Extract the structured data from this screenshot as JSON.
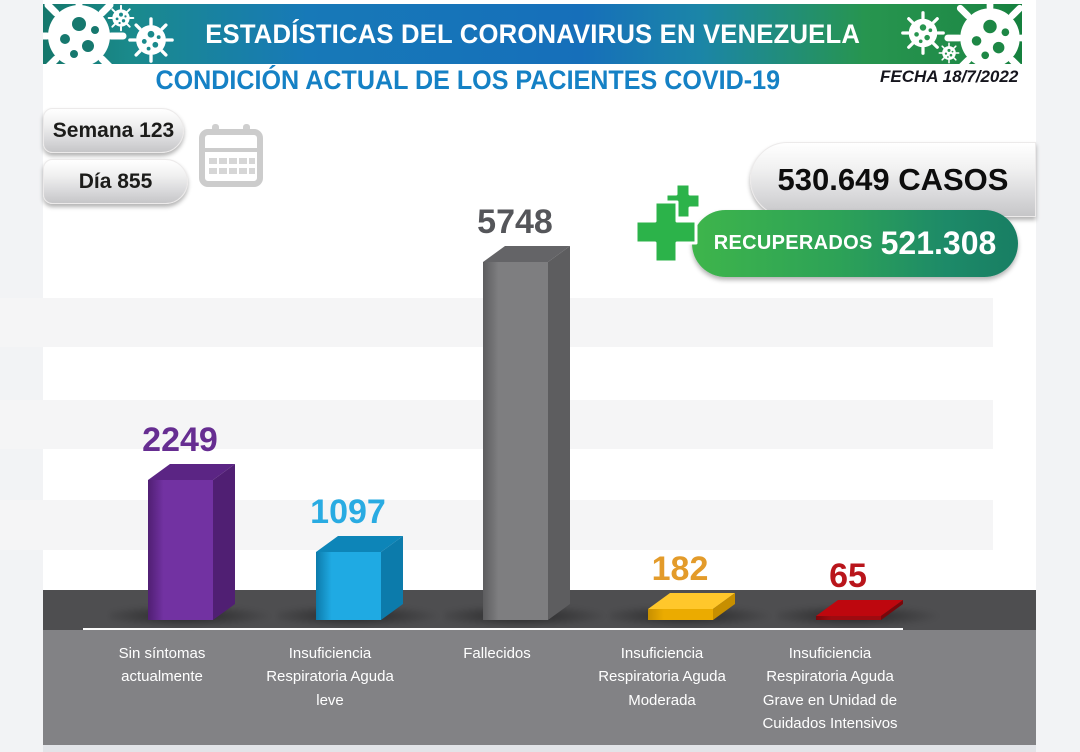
{
  "header": {
    "title": "ESTADÍSTICAS DEL CORONAVIRUS EN VENEZUELA",
    "subtitle": "CONDICIÓN ACTUAL DE LOS PACIENTES COVID-19",
    "date_label": "FECHA 18/7/2022"
  },
  "badges": {
    "week": "Semana 123",
    "day": "Día 855",
    "cases": "530.649 CASOS",
    "recovered_label": "RECUPERADOS",
    "recovered_value": "521.308"
  },
  "icons": {
    "virus": "virus-icon",
    "calendar": "calendar-icon",
    "cross": "medical-cross-icon"
  },
  "colors": {
    "banner_teal": "#15776b",
    "banner_blue": "#166fba",
    "banner_green": "#1f8a47",
    "subtitle_blue": "#1581c5",
    "recovered_green_start": "#3eb54b",
    "recovered_green_end": "#187e63",
    "platform_gray": "#4e4e50",
    "label_band_gray": "#828285"
  },
  "chart_data": {
    "type": "bar",
    "title": "CONDICIÓN ACTUAL DE LOS PACIENTES COVID-19",
    "categories": [
      "Sin síntomas\nactualmente",
      "Insuficiencia\nRespiratoria Aguda\nleve",
      "Fallecidos",
      "Insuficiencia\nRespiratoria Aguda\nModerada",
      "Insuficiencia\nRespiratoria Aguda\nGrave en Unidad de\nCuidados Intensivos"
    ],
    "values": [
      2249,
      1097,
      5748,
      182,
      65
    ],
    "value_label_colors": [
      "#662d91",
      "#29abe2",
      "#55565a",
      "#e39b2a",
      "#b9151b"
    ],
    "bar_front_colors": [
      "#7232a2",
      "#1faae3",
      "#7e7e80",
      "#ebab00",
      "#9e0b10"
    ],
    "bar_top_colors": [
      "#5b2584",
      "#0d85b8",
      "#646467",
      "#ffc72b",
      "#be070e"
    ],
    "bar_side_colors": [
      "#501f73",
      "#0c7bab",
      "#5d5d5f",
      "#c78f00",
      "#7a070b"
    ],
    "ylim": [
      0,
      5748
    ],
    "legend": "none",
    "background": "white with light horizontal stripes"
  }
}
